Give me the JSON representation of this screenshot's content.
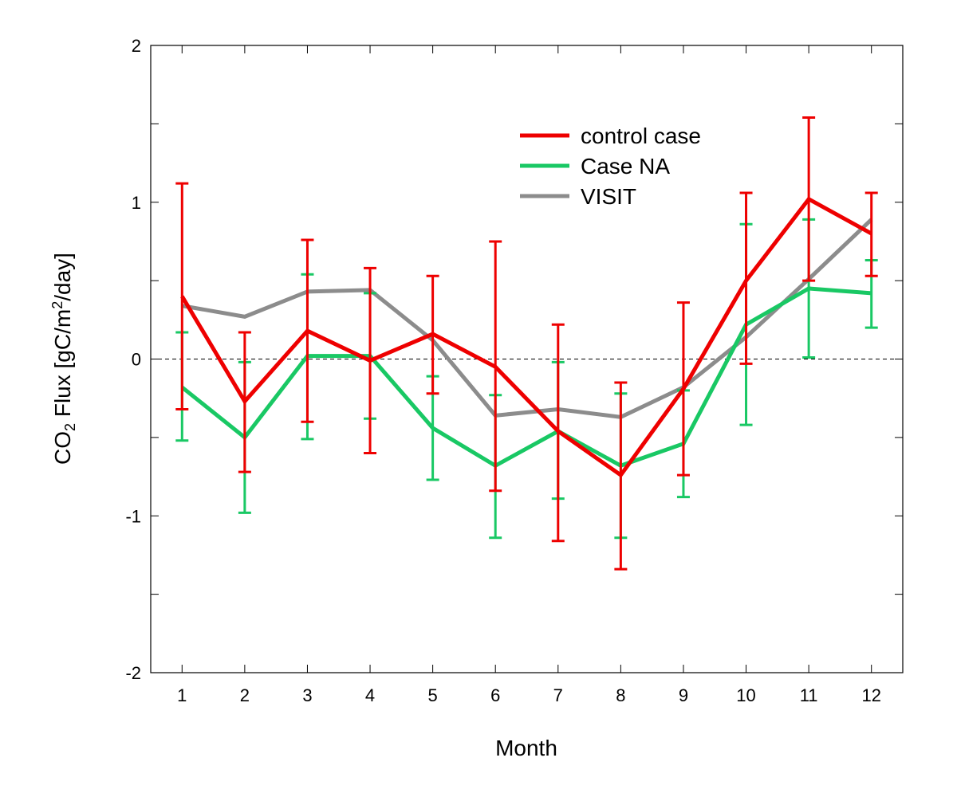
{
  "chart_data": {
    "type": "line",
    "xlabel": "Month",
    "ylabel": {
      "pre": "CO",
      "sub": "2",
      "mid": " Flux [gC/m",
      "sup": "2",
      "post": "/day]"
    },
    "x": [
      1,
      2,
      3,
      4,
      5,
      6,
      7,
      8,
      9,
      10,
      11,
      12
    ],
    "x_tick_labels": [
      "1",
      "2",
      "3",
      "4",
      "5",
      "6",
      "7",
      "8",
      "9",
      "10",
      "11",
      "12"
    ],
    "y_tick_labels": [
      "-2",
      "-1",
      "0",
      "1",
      "2"
    ],
    "y_ticks": [
      -2,
      -1,
      0,
      1,
      2
    ],
    "xlim": [
      0.5,
      12.5
    ],
    "ylim": [
      -2,
      2
    ],
    "zero_line": {
      "y": 0,
      "style": "dashed"
    },
    "legend_position": "top-right",
    "series": [
      {
        "name": "VISIT",
        "color": "#8c8c8c",
        "values": [
          0.34,
          0.27,
          0.43,
          0.44,
          0.12,
          -0.36,
          -0.32,
          -0.37,
          -0.18,
          0.14,
          0.51,
          0.89
        ]
      },
      {
        "name": "Case NA",
        "color": "#19c864",
        "values": [
          -0.18,
          -0.5,
          0.02,
          0.02,
          -0.44,
          -0.68,
          -0.46,
          -0.68,
          -0.54,
          0.22,
          0.45,
          0.42
        ],
        "err_low": [
          -0.52,
          -0.98,
          -0.51,
          -0.38,
          -0.77,
          -1.14,
          -0.89,
          -1.14,
          -0.88,
          -0.42,
          0.01,
          0.2
        ],
        "err_high": [
          0.17,
          -0.02,
          0.54,
          0.42,
          -0.11,
          -0.23,
          -0.02,
          -0.22,
          -0.2,
          0.86,
          0.89,
          0.63
        ]
      },
      {
        "name": "control case",
        "color": "#ee0000",
        "values": [
          0.4,
          -0.27,
          0.18,
          -0.01,
          0.16,
          -0.05,
          -0.46,
          -0.74,
          -0.19,
          0.5,
          1.02,
          0.8
        ],
        "err_low": [
          -0.32,
          -0.72,
          -0.4,
          -0.6,
          -0.22,
          -0.84,
          -1.16,
          -1.34,
          -0.74,
          -0.03,
          0.5,
          0.53
        ],
        "err_high": [
          1.12,
          0.17,
          0.76,
          0.58,
          0.53,
          0.75,
          0.22,
          -0.15,
          0.36,
          1.06,
          1.54,
          1.06
        ]
      }
    ],
    "legend_order": [
      "control case",
      "Case NA",
      "VISIT"
    ]
  }
}
